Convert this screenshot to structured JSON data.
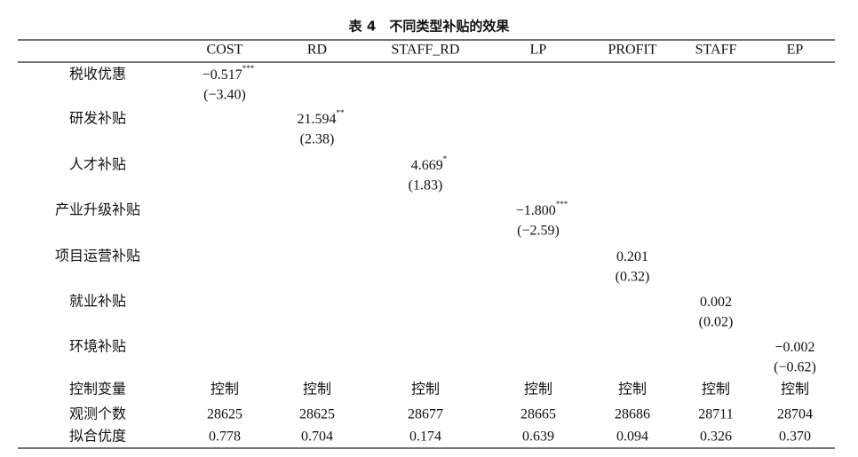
{
  "title": "表 4　不同类型补贴的效果",
  "table": {
    "columns": [
      "COST",
      "RD",
      "STAFF_RD",
      "LP",
      "PROFIT",
      "STAFF",
      "EP"
    ],
    "effects": [
      {
        "label": "税收优惠",
        "coef": "−0.517",
        "stars": "***",
        "t": "(−3.40)"
      },
      {
        "label": "研发补贴",
        "coef": "21.594",
        "stars": "**",
        "t": "(2.38)"
      },
      {
        "label": "人才补贴",
        "coef": "4.669",
        "stars": "*",
        "t": "(1.83)"
      },
      {
        "label": "产业升级补贴",
        "coef": "−1.800",
        "stars": "***",
        "t": "(−2.59)"
      },
      {
        "label": "项目运营补贴",
        "coef": "0.201",
        "t": "(0.32)"
      },
      {
        "label": "就业补贴",
        "coef": "0.002",
        "t": "(0.02)"
      },
      {
        "label": "环境补贴",
        "coef": "−0.002",
        "t": "(−0.62)"
      }
    ],
    "footer": [
      {
        "label": "控制变量",
        "values": [
          "控制",
          "控制",
          "控制",
          "控制",
          "控制",
          "控制",
          "控制"
        ]
      },
      {
        "label": "观测个数",
        "values": [
          28625,
          28625,
          28677,
          28665,
          28686,
          28711,
          28704
        ]
      },
      {
        "label": "拟合优度",
        "values": [
          "0.778",
          "0.704",
          "0.174",
          "0.639",
          "0.094",
          "0.326",
          "0.370"
        ]
      }
    ]
  }
}
